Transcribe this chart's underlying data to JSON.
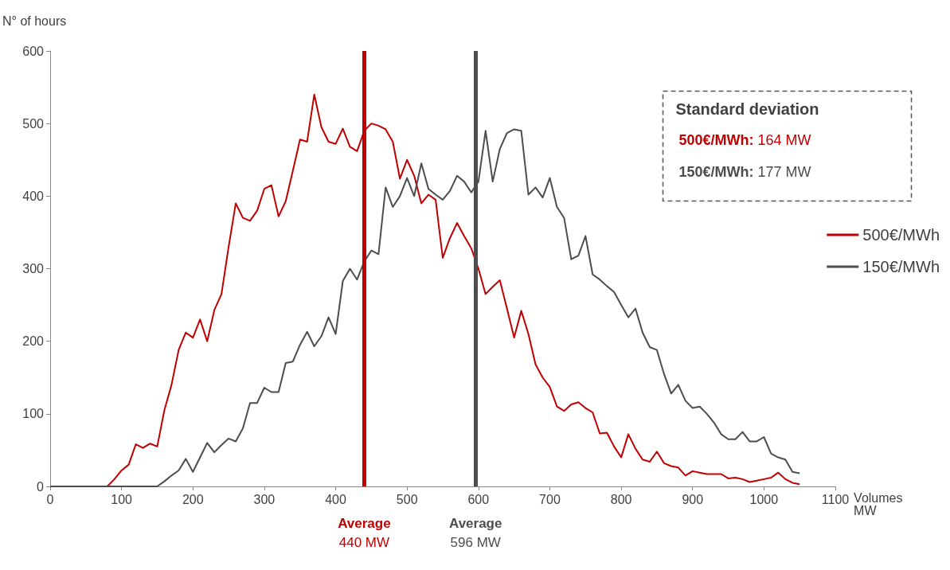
{
  "chart_data": {
    "type": "line",
    "ylabel": "N° of hours",
    "xlabel": "Volumes\nMW",
    "xlim": [
      0,
      1100
    ],
    "xticks": [
      0,
      100,
      200,
      300,
      400,
      500,
      600,
      700,
      800,
      900,
      1000,
      1100
    ],
    "ylim": [
      0,
      600
    ],
    "yticks": [
      0,
      100,
      200,
      300,
      400,
      500,
      600
    ],
    "grid": false,
    "legend": "right",
    "marker": "none",
    "line_style": "solid",
    "x": [
      0,
      10,
      20,
      30,
      40,
      50,
      60,
      70,
      80,
      90,
      100,
      110,
      120,
      130,
      140,
      150,
      160,
      170,
      180,
      190,
      200,
      210,
      220,
      230,
      240,
      250,
      260,
      270,
      280,
      290,
      300,
      310,
      320,
      330,
      340,
      350,
      360,
      370,
      380,
      390,
      400,
      410,
      420,
      430,
      440,
      450,
      460,
      470,
      480,
      490,
      500,
      510,
      520,
      530,
      540,
      550,
      560,
      570,
      580,
      590,
      600,
      610,
      620,
      630,
      640,
      650,
      660,
      670,
      680,
      690,
      700,
      710,
      720,
      730,
      740,
      750,
      760,
      770,
      780,
      790,
      800,
      810,
      820,
      830,
      840,
      850,
      860,
      870,
      880,
      890,
      900,
      910,
      920,
      930,
      940,
      950,
      960,
      970,
      980,
      990,
      1000,
      1010,
      1020,
      1030,
      1040,
      1050
    ],
    "series": [
      {
        "name": "500€/MWh",
        "color": "#c00000",
        "values": [
          null,
          null,
          null,
          null,
          null,
          null,
          null,
          0,
          0,
          10,
          22,
          30,
          58,
          53,
          59,
          55,
          105,
          140,
          188,
          212,
          205,
          230,
          200,
          243,
          265,
          330,
          390,
          370,
          366,
          380,
          410,
          415,
          372,
          393,
          435,
          478,
          475,
          540,
          495,
          475,
          472,
          493,
          468,
          462,
          490,
          500,
          497,
          492,
          475,
          424,
          450,
          428,
          390,
          402,
          395,
          315,
          342,
          363,
          345,
          328,
          300,
          265,
          275,
          284,
          245,
          205,
          242,
          210,
          168,
          150,
          137,
          110,
          104,
          113,
          116,
          108,
          102,
          73,
          74,
          55,
          40,
          72,
          52,
          37,
          34,
          48,
          32,
          28,
          26,
          15,
          21,
          19,
          17,
          17,
          17,
          11,
          12,
          10,
          6,
          8,
          10,
          12,
          19,
          10,
          5,
          3
        ]
      },
      {
        "name": "150€/MWh",
        "color": "#4d4d4d",
        "values": [
          0,
          0,
          0,
          0,
          0,
          0,
          0,
          0,
          0,
          0,
          0,
          0,
          0,
          0,
          0,
          0,
          7,
          15,
          22,
          38,
          20,
          40,
          60,
          47,
          57,
          66,
          62,
          80,
          115,
          115,
          136,
          130,
          130,
          170,
          172,
          195,
          213,
          193,
          207,
          233,
          210,
          283,
          300,
          285,
          310,
          325,
          320,
          412,
          385,
          400,
          425,
          400,
          445,
          410,
          402,
          395,
          407,
          428,
          420,
          405,
          420,
          490,
          420,
          465,
          487,
          492,
          490,
          402,
          412,
          398,
          425,
          385,
          370,
          313,
          318,
          345,
          292,
          285,
          276,
          268,
          250,
          233,
          245,
          212,
          192,
          188,
          155,
          128,
          140,
          118,
          108,
          110,
          100,
          88,
          72,
          65,
          65,
          75,
          62,
          62,
          68,
          45,
          40,
          37,
          20,
          18
        ]
      }
    ],
    "ref_lines": [
      {
        "axis": "x",
        "value": 440,
        "label": "Average\n440 MW",
        "color": "#c00000"
      },
      {
        "axis": "x",
        "value": 596,
        "label": "Average\n596 MW",
        "color": "#4d4d4d"
      }
    ],
    "annotations": [
      "Standard deviation",
      "500€/MWh: 164 MW",
      "150€/MWh: 177 MW"
    ]
  }
}
